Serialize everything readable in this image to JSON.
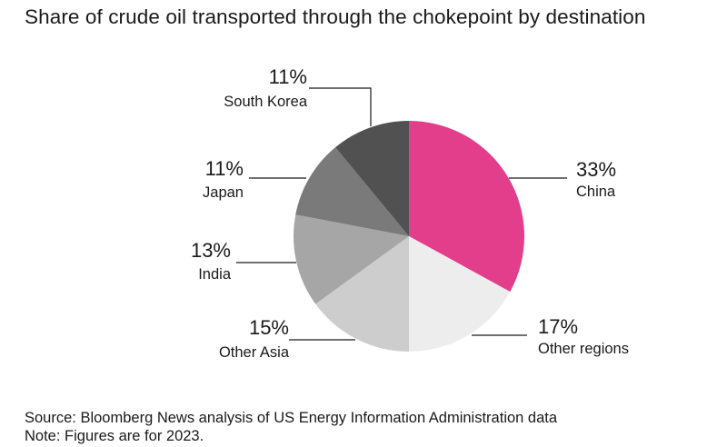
{
  "chart_data": {
    "type": "pie",
    "title": "Share of crude oil transported through the chokepoint by destination",
    "slices": [
      {
        "label": "China",
        "value": 33,
        "value_label": "33%",
        "color": "#e23e8b"
      },
      {
        "label": "Other regions",
        "value": 17,
        "value_label": "17%",
        "color": "#ededed"
      },
      {
        "label": "Other Asia",
        "value": 15,
        "value_label": "15%",
        "color": "#cdcdcd"
      },
      {
        "label": "India",
        "value": 13,
        "value_label": "13%",
        "color": "#a6a6a6"
      },
      {
        "label": "Japan",
        "value": 11,
        "value_label": "11%",
        "color": "#7a7a7a"
      },
      {
        "label": "South Korea",
        "value": 11,
        "value_label": "11%",
        "color": "#515151"
      }
    ],
    "start_angle": "12 o'clock",
    "direction": "clockwise"
  },
  "footer": {
    "source": "Source: Bloomberg News analysis of US Energy Information Administration data",
    "note": "Note: Figures are for 2023."
  }
}
